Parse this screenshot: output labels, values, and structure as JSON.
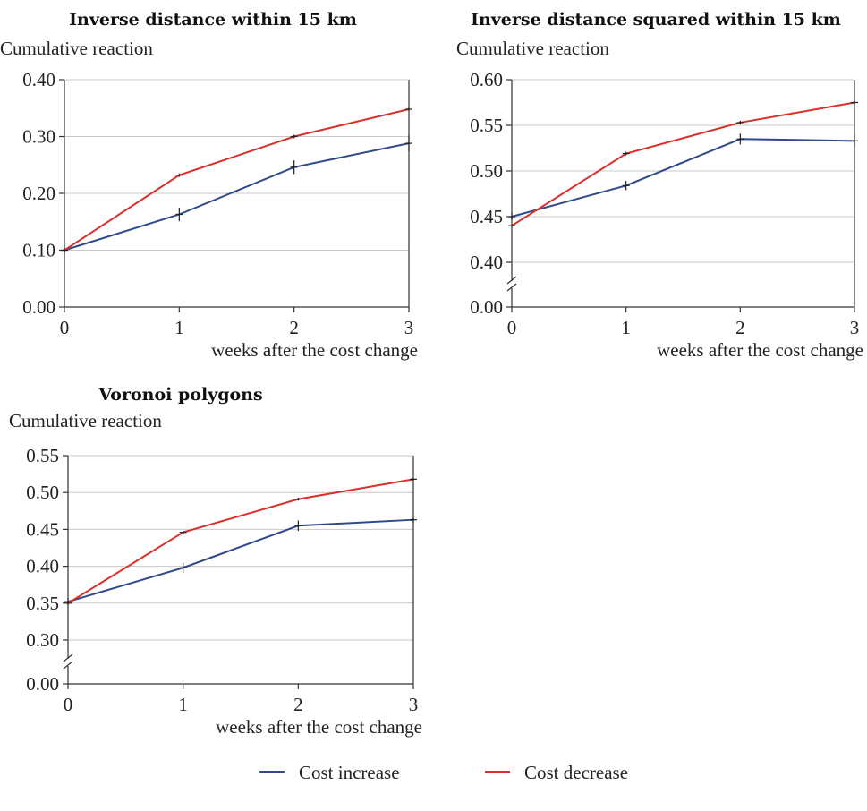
{
  "chart_data": [
    {
      "type": "line",
      "title": "Inverse distance within 15 km",
      "ylabel": "Cumulative reaction",
      "xlabel": "weeks after the cost change",
      "x": [
        0,
        1,
        2,
        3
      ],
      "y_ticks": [
        "0.00",
        "0.10",
        "0.20",
        "0.30",
        "0.40"
      ],
      "x_ticks": [
        "0",
        "1",
        "2",
        "3"
      ],
      "ylim": [
        0,
        0.4
      ],
      "axis_break": false,
      "series": [
        {
          "name": "Cost increase",
          "values": [
            0.1,
            0.163,
            0.246,
            0.288
          ],
          "errors": [
            0.006,
            0.012,
            0.012,
            0.014
          ]
        },
        {
          "name": "Cost decrease",
          "values": [
            0.1,
            0.232,
            0.3,
            0.348
          ],
          "errors": [
            0.003,
            0.003,
            0.003,
            0.003
          ]
        }
      ]
    },
    {
      "type": "line",
      "title": "Inverse distance squared within 15 km",
      "ylabel": "Cumulative reaction",
      "xlabel": "weeks after the cost change",
      "x": [
        0,
        1,
        2,
        3
      ],
      "y_ticks": [
        "0.00",
        "0.40",
        "0.45",
        "0.50",
        "0.55",
        "0.60"
      ],
      "x_ticks": [
        "0",
        "1",
        "2",
        "3"
      ],
      "ylim": [
        0.35,
        0.6
      ],
      "axis_break": true,
      "series": [
        {
          "name": "Cost increase",
          "values": [
            0.45,
            0.484,
            0.535,
            0.533
          ],
          "errors": [
            0.004,
            0.005,
            0.006,
            0.006
          ]
        },
        {
          "name": "Cost decrease",
          "values": [
            0.44,
            0.519,
            0.553,
            0.575
          ],
          "errors": [
            0.002,
            0.002,
            0.002,
            0.002
          ]
        }
      ]
    },
    {
      "type": "line",
      "title": "Voronoi polygons",
      "ylabel": "Cumulative reaction",
      "xlabel": "weeks after the cost change",
      "x": [
        0,
        1,
        2,
        3
      ],
      "y_ticks": [
        "0.00",
        "0.30",
        "0.35",
        "0.40",
        "0.45",
        "0.50",
        "0.55"
      ],
      "x_ticks": [
        "0",
        "1",
        "2",
        "3"
      ],
      "ylim": [
        0.25,
        0.55
      ],
      "axis_break": true,
      "series": [
        {
          "name": "Cost increase",
          "values": [
            0.352,
            0.398,
            0.455,
            0.463
          ],
          "errors": [
            0.005,
            0.007,
            0.007,
            0.004
          ]
        },
        {
          "name": "Cost decrease",
          "values": [
            0.35,
            0.446,
            0.491,
            0.518
          ],
          "errors": [
            0.002,
            0.002,
            0.002,
            0.002
          ]
        }
      ]
    }
  ],
  "legend": {
    "placement": "bottom-center",
    "items": [
      {
        "label": "Cost increase",
        "color": "#2f4a8a"
      },
      {
        "label": "Cost decrease",
        "color": "#d9302b"
      }
    ]
  }
}
